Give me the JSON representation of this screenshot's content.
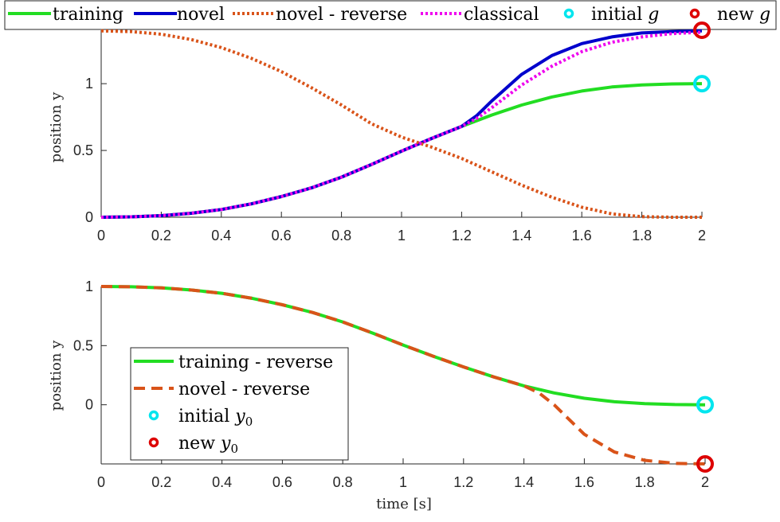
{
  "chart_data": [
    {
      "type": "line",
      "title": "",
      "xlabel": "",
      "ylabel": "position y",
      "xlim": [
        0,
        2
      ],
      "ylim": [
        0,
        1.4
      ],
      "xticks": [
        "0",
        "0.2",
        "0.4",
        "0.6",
        "0.8",
        "1",
        "1.2",
        "1.4",
        "1.6",
        "1.8",
        "2"
      ],
      "yticks": [
        "0",
        "0.5",
        "1"
      ],
      "grid": false,
      "legend_position": "top-outside",
      "series": [
        {
          "name": "training",
          "style": "solid",
          "color": "#22dd22",
          "x": [
            0,
            0.1,
            0.2,
            0.3,
            0.4,
            0.5,
            0.6,
            0.7,
            0.8,
            0.9,
            1.0,
            1.1,
            1.2,
            1.3,
            1.4,
            1.5,
            1.6,
            1.7,
            1.8,
            1.9,
            2.0
          ],
          "y": [
            0,
            0.003,
            0.012,
            0.03,
            0.058,
            0.1,
            0.155,
            0.22,
            0.3,
            0.395,
            0.495,
            0.59,
            0.68,
            0.765,
            0.84,
            0.9,
            0.945,
            0.975,
            0.99,
            0.998,
            1.0
          ]
        },
        {
          "name": "novel",
          "style": "solid",
          "color": "#0000cc",
          "x": [
            0,
            0.1,
            0.2,
            0.3,
            0.4,
            0.5,
            0.6,
            0.7,
            0.8,
            0.9,
            1.0,
            1.1,
            1.2,
            1.25,
            1.3,
            1.4,
            1.5,
            1.6,
            1.7,
            1.8,
            1.9,
            2.0
          ],
          "y": [
            0,
            0.003,
            0.012,
            0.03,
            0.058,
            0.1,
            0.155,
            0.22,
            0.3,
            0.395,
            0.495,
            0.59,
            0.68,
            0.76,
            0.87,
            1.07,
            1.21,
            1.3,
            1.35,
            1.38,
            1.39,
            1.395
          ]
        },
        {
          "name": "novel - reverse",
          "style": "dotted",
          "color": "#d95319",
          "x": [
            0,
            0.1,
            0.2,
            0.3,
            0.4,
            0.5,
            0.6,
            0.7,
            0.8,
            0.9,
            1.0,
            1.1,
            1.2,
            1.3,
            1.4,
            1.5,
            1.6,
            1.7,
            1.8,
            1.9,
            2.0
          ],
          "y": [
            1.395,
            1.39,
            1.37,
            1.33,
            1.27,
            1.19,
            1.09,
            0.97,
            0.84,
            0.7,
            0.6,
            0.525,
            0.44,
            0.34,
            0.24,
            0.15,
            0.075,
            0.025,
            0.004,
            0,
            0
          ]
        },
        {
          "name": "classical",
          "style": "dotted",
          "color": "#ee00ee",
          "x": [
            0,
            0.1,
            0.2,
            0.3,
            0.4,
            0.5,
            0.6,
            0.7,
            0.8,
            0.9,
            1.0,
            1.1,
            1.2,
            1.25,
            1.3,
            1.4,
            1.5,
            1.6,
            1.7,
            1.8,
            1.9,
            2.0
          ],
          "y": [
            0,
            0.003,
            0.012,
            0.03,
            0.058,
            0.1,
            0.155,
            0.22,
            0.3,
            0.395,
            0.495,
            0.59,
            0.68,
            0.74,
            0.82,
            0.99,
            1.13,
            1.24,
            1.31,
            1.35,
            1.375,
            1.385
          ]
        }
      ],
      "markers": [
        {
          "name": "initial g",
          "x": 2.0,
          "y": 1.0,
          "color": "#00e5ee"
        },
        {
          "name": "new g",
          "x": 2.0,
          "y": 1.4,
          "color": "#dd0000"
        }
      ],
      "legend_entries": [
        {
          "label": "training"
        },
        {
          "label": "novel"
        },
        {
          "label": "novel - reverse"
        },
        {
          "label": "classical"
        },
        {
          "label": "initial ",
          "math": "g"
        },
        {
          "label": "new ",
          "math": "g"
        }
      ]
    },
    {
      "type": "line",
      "title": "",
      "xlabel": "time [s]",
      "ylabel": "position y",
      "xlim": [
        0,
        2
      ],
      "ylim": [
        -0.5,
        1
      ],
      "xticks": [
        "0",
        "0.2",
        "0.4",
        "0.6",
        "0.8",
        "1",
        "1.2",
        "1.4",
        "1.6",
        "1.8",
        "2"
      ],
      "yticks": [
        "0",
        "0.5",
        "1"
      ],
      "grid": false,
      "legend_position": "bottom-left",
      "series": [
        {
          "name": "training - reverse",
          "style": "solid",
          "color": "#22dd22",
          "x": [
            0,
            0.1,
            0.2,
            0.3,
            0.4,
            0.5,
            0.6,
            0.7,
            0.8,
            0.9,
            1.0,
            1.1,
            1.2,
            1.3,
            1.4,
            1.5,
            1.6,
            1.7,
            1.8,
            1.9,
            2.0
          ],
          "y": [
            1.0,
            0.997,
            0.988,
            0.97,
            0.942,
            0.9,
            0.845,
            0.78,
            0.7,
            0.605,
            0.505,
            0.41,
            0.32,
            0.235,
            0.16,
            0.1,
            0.055,
            0.025,
            0.01,
            0.002,
            0.0
          ]
        },
        {
          "name": "novel - reverse",
          "style": "dashed",
          "color": "#d95319",
          "x": [
            0,
            0.1,
            0.2,
            0.3,
            0.4,
            0.5,
            0.6,
            0.7,
            0.8,
            0.9,
            1.0,
            1.1,
            1.2,
            1.3,
            1.4,
            1.45,
            1.5,
            1.6,
            1.7,
            1.8,
            1.9,
            2.0
          ],
          "y": [
            1.0,
            0.997,
            0.988,
            0.97,
            0.942,
            0.9,
            0.845,
            0.78,
            0.7,
            0.605,
            0.505,
            0.41,
            0.32,
            0.235,
            0.16,
            0.1,
            0.0,
            -0.25,
            -0.4,
            -0.47,
            -0.495,
            -0.5
          ]
        }
      ],
      "markers": [
        {
          "name": "initial y0",
          "x": 2.0,
          "y": 0.0,
          "color": "#00e5ee"
        },
        {
          "name": "new y0",
          "x": 2.0,
          "y": -0.5,
          "color": "#dd0000"
        }
      ],
      "legend_entries": [
        {
          "label": "training - reverse"
        },
        {
          "label": "novel - reverse"
        },
        {
          "label": "initial ",
          "math": "y",
          "sub": "0"
        },
        {
          "label": "new ",
          "math": "y",
          "sub": "0"
        }
      ]
    }
  ]
}
